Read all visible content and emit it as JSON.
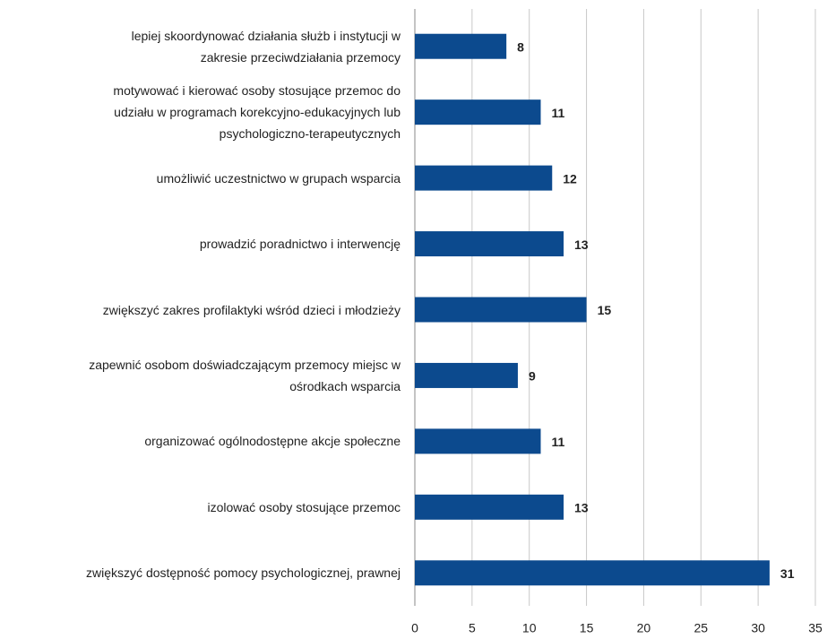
{
  "chart_data": {
    "type": "bar",
    "orientation": "horizontal",
    "categories": [
      "lepiej skoordynować działania służb i instytucji w\nzakresie przeciwdziałania przemocy",
      "motywować i kierować osoby stosujące przemoc do\nudziału w programach korekcyjno-edukacyjnych lub\npsychologiczno-terapeutycznych",
      "umożliwić uczestnictwo w grupach wsparcia",
      "prowadzić poradnictwo i interwencję",
      "zwiększyć zakres profilaktyki wśród dzieci i młodzieży",
      "zapewnić osobom doświadczającym przemocy miejsc w\nośrodkach wsparcia",
      "organizować ogólnodostępne akcje społeczne",
      "izolować osoby stosujące przemoc",
      "zwiększyć dostępność pomocy psychologicznej, prawnej"
    ],
    "values": [
      8,
      11,
      12,
      13,
      15,
      9,
      11,
      13,
      31
    ],
    "color": "#0c4a8e",
    "xlim": [
      0,
      35
    ],
    "xticks": [
      0,
      5,
      10,
      15,
      20,
      25,
      30,
      35
    ],
    "grid": true
  }
}
